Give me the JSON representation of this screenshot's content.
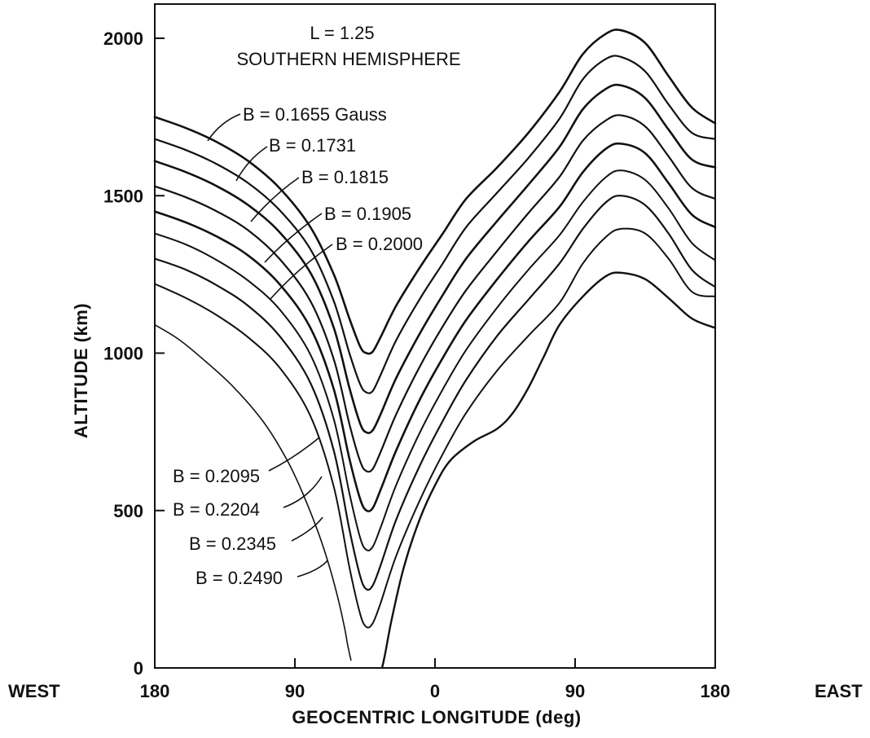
{
  "chart_data": {
    "type": "line",
    "title_lines": [
      "L = 1.25",
      "SOUTHERN HEMISPHERE"
    ],
    "xlabel": "GEOCENTRIC LONGITUDE (deg)",
    "ylabel": "ALTITUDE (km)",
    "west_label": "WEST",
    "east_label": "EAST",
    "x_direction": "west 180 to 0 to east 180 (signed: west negative, east positive)",
    "xlim": [
      -180,
      180
    ],
    "ylim": [
      0,
      2000
    ],
    "x_ticks": [
      {
        "value": -180,
        "label": "180"
      },
      {
        "value": -90,
        "label": "90"
      },
      {
        "value": 0,
        "label": "0"
      },
      {
        "value": 90,
        "label": "90"
      },
      {
        "value": 180,
        "label": "180"
      }
    ],
    "y_ticks": [
      {
        "value": 0,
        "label": "0"
      },
      {
        "value": 500,
        "label": "500"
      },
      {
        "value": 1000,
        "label": "1000"
      },
      {
        "value": 1500,
        "label": "1500"
      },
      {
        "value": 2000,
        "label": "2000"
      }
    ],
    "grid": false,
    "series": [
      {
        "name": "B = 0.1655 Gauss",
        "x": [
          -180,
          -160,
          -140,
          -120,
          -100,
          -80,
          -65,
          -55,
          -48,
          -44,
          -40,
          -35,
          -25,
          -10,
          5,
          20,
          40,
          60,
          80,
          95,
          110,
          120,
          135,
          150,
          165,
          180
        ],
        "values": [
          1750,
          1715,
          1670,
          1610,
          1525,
          1400,
          1250,
          1110,
          1020,
          1000,
          1005,
          1050,
          1150,
          1270,
          1380,
          1490,
          1590,
          1700,
          1830,
          1950,
          2015,
          2025,
          1985,
          1880,
          1780,
          1730
        ]
      },
      {
        "name": "B = 0.1731",
        "x": [
          -180,
          -160,
          -140,
          -120,
          -100,
          -80,
          -65,
          -55,
          -48,
          -44,
          -40,
          -35,
          -25,
          -10,
          5,
          20,
          40,
          60,
          80,
          95,
          110,
          120,
          135,
          150,
          165,
          180
        ],
        "values": [
          1680,
          1645,
          1600,
          1540,
          1455,
          1330,
          1165,
          1000,
          900,
          875,
          880,
          930,
          1040,
          1170,
          1285,
          1400,
          1510,
          1620,
          1745,
          1870,
          1935,
          1940,
          1895,
          1790,
          1700,
          1680
        ]
      },
      {
        "name": "B = 0.1815",
        "x": [
          -180,
          -160,
          -140,
          -120,
          -100,
          -80,
          -65,
          -55,
          -48,
          -44,
          -40,
          -35,
          -25,
          -10,
          5,
          20,
          40,
          60,
          80,
          95,
          110,
          120,
          135,
          150,
          165,
          180
        ],
        "values": [
          1610,
          1575,
          1530,
          1470,
          1385,
          1255,
          1080,
          890,
          775,
          748,
          755,
          805,
          920,
          1060,
          1185,
          1300,
          1420,
          1535,
          1655,
          1775,
          1840,
          1850,
          1810,
          1710,
          1615,
          1590
        ]
      },
      {
        "name": "B = 0.1905",
        "x": [
          -180,
          -160,
          -140,
          -120,
          -100,
          -80,
          -65,
          -55,
          -48,
          -44,
          -40,
          -35,
          -25,
          -10,
          5,
          20,
          40,
          60,
          80,
          95,
          110,
          120,
          135,
          150,
          165,
          180
        ],
        "values": [
          1530,
          1495,
          1450,
          1390,
          1300,
          1165,
          980,
          775,
          655,
          625,
          632,
          685,
          805,
          955,
          1085,
          1200,
          1325,
          1445,
          1560,
          1675,
          1740,
          1755,
          1720,
          1625,
          1525,
          1490
        ]
      },
      {
        "name": "B = 0.2000",
        "x": [
          -180,
          -160,
          -140,
          -120,
          -100,
          -80,
          -65,
          -55,
          -48,
          -44,
          -40,
          -35,
          -25,
          -10,
          5,
          20,
          40,
          60,
          80,
          95,
          110,
          120,
          135,
          150,
          165,
          180
        ],
        "values": [
          1450,
          1415,
          1370,
          1310,
          1220,
          1080,
          885,
          665,
          535,
          500,
          508,
          565,
          690,
          850,
          985,
          1105,
          1235,
          1355,
          1465,
          1575,
          1650,
          1665,
          1635,
          1540,
          1440,
          1400
        ]
      },
      {
        "name": "B = 0.2095",
        "x": [
          -180,
          -160,
          -140,
          -120,
          -100,
          -80,
          -65,
          -55,
          -48,
          -44,
          -40,
          -35,
          -25,
          -10,
          5,
          20,
          40,
          60,
          80,
          95,
          110,
          120,
          135,
          150,
          165,
          180
        ],
        "values": [
          1380,
          1345,
          1295,
          1230,
          1140,
          995,
          790,
          555,
          412,
          375,
          385,
          445,
          580,
          745,
          885,
          1010,
          1145,
          1265,
          1375,
          1480,
          1560,
          1580,
          1550,
          1460,
          1350,
          1295
        ]
      },
      {
        "name": "B = 0.2204",
        "x": [
          -180,
          -160,
          -140,
          -120,
          -100,
          -80,
          -65,
          -55,
          -48,
          -44,
          -40,
          -35,
          -25,
          -10,
          5,
          20,
          40,
          60,
          80,
          95,
          110,
          120,
          135,
          150,
          165,
          180
        ],
        "values": [
          1300,
          1265,
          1215,
          1150,
          1055,
          905,
          690,
          440,
          290,
          250,
          262,
          325,
          470,
          640,
          785,
          915,
          1055,
          1170,
          1285,
          1395,
          1480,
          1500,
          1470,
          1380,
          1265,
          1210
        ]
      },
      {
        "name": "B = 0.2345",
        "x": [
          -180,
          -160,
          -140,
          -120,
          -100,
          -80,
          -65,
          -55,
          -48,
          -44,
          -40,
          -35,
          -25,
          -10,
          5,
          20,
          40,
          60,
          80,
          95,
          110,
          120,
          135,
          150,
          165,
          180
        ],
        "values": [
          1220,
          1175,
          1120,
          1050,
          955,
          800,
          575,
          320,
          170,
          130,
          142,
          205,
          355,
          530,
          680,
          810,
          945,
          1055,
          1160,
          1285,
          1370,
          1395,
          1380,
          1300,
          1195,
          1180
        ]
      },
      {
        "name": "B = 0.2490",
        "x": [
          -180,
          -165,
          -150,
          -130,
          -110,
          -95,
          -85,
          -75,
          -68,
          -62,
          -58,
          -56,
          -54,
          -52,
          -50,
          -48,
          -46,
          -44,
          -42,
          -40,
          -38,
          -36,
          -34,
          -32
        ],
        "values": [
          1090,
          1045,
          985,
          895,
          780,
          660,
          555,
          430,
          325,
          215,
          125,
          70,
          25,
          null,
          null,
          null,
          null,
          null,
          null,
          null,
          null,
          null,
          null,
          null
        ]
      },
      {
        "name": "B = 0.2490 (east branch)",
        "x": [
          -34,
          -32,
          -28,
          -20,
          -10,
          0,
          10,
          25,
          40,
          50,
          60,
          70,
          80,
          95,
          110,
          120,
          135,
          150,
          165,
          180
        ],
        "values": [
          0,
          45,
          150,
          320,
          470,
          580,
          660,
          720,
          760,
          810,
          890,
          990,
          1090,
          1180,
          1245,
          1255,
          1235,
          1175,
          1110,
          1080
        ]
      }
    ],
    "annotations": {
      "upper_labels": [
        "B = 0.1655 Gauss",
        "B = 0.1731",
        "B = 0.1815",
        "B = 0.1905",
        "B = 0.2000"
      ],
      "lower_labels": [
        "B = 0.2095",
        "B = 0.2204",
        "B = 0.2345",
        "B = 0.2490"
      ]
    }
  }
}
